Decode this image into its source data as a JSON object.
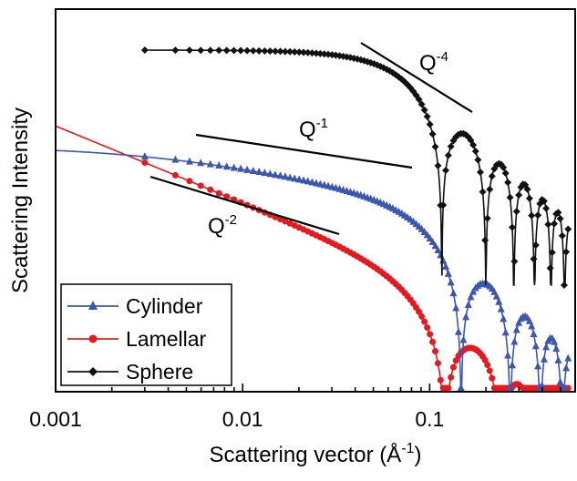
{
  "chart_data": {
    "type": "line",
    "title": "",
    "xlabel_main": "Scattering vector (Å",
    "xlabel_sup": "-1",
    "xlabel_end": ")",
    "ylabel": "Scattering Intensity",
    "xscale": "log",
    "xlim": [
      0.001,
      0.6
    ],
    "x_ticks": [
      {
        "value": 0.001,
        "label": "0.001"
      },
      {
        "value": 0.01,
        "label": "0.01"
      },
      {
        "value": 0.1,
        "label": "0.1"
      }
    ],
    "y_tick_labels": false,
    "legend_position": "bottom-left",
    "series": [
      {
        "name": "Cylinder",
        "color": "#3b57b0",
        "marker": "triangle"
      },
      {
        "name": "Lamellar",
        "color": "#e8191e",
        "marker": "circle"
      },
      {
        "name": "Sphere",
        "color": "#111111",
        "marker": "diamond"
      }
    ],
    "annotations": [
      {
        "base": "Q",
        "exp": "-4",
        "slope": -4
      },
      {
        "base": "Q",
        "exp": "-1",
        "slope": -1
      },
      {
        "base": "Q",
        "exp": "-2",
        "slope": -2
      }
    ]
  }
}
